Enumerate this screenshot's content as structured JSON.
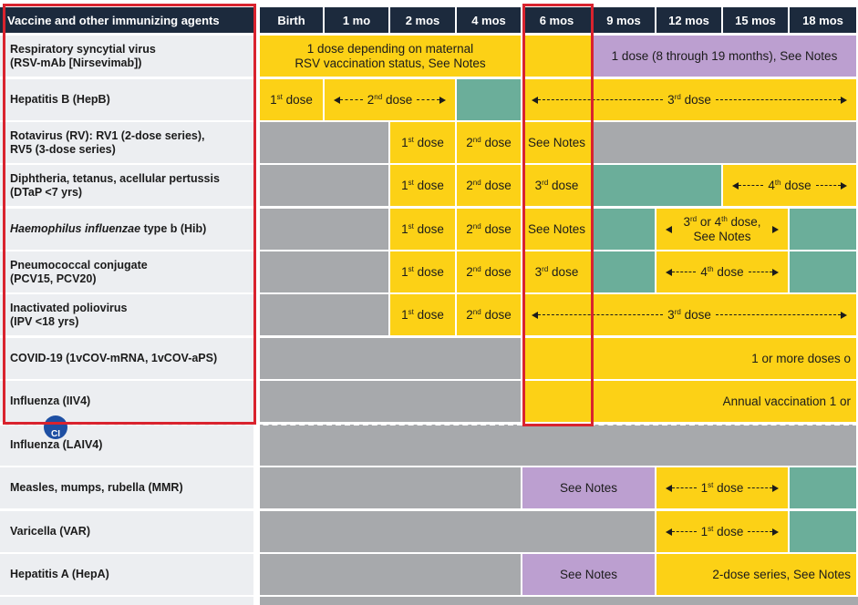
{
  "colors": {
    "header": "#1c2a3d",
    "label_bg": "#eceef1",
    "yellow": "#fcd116",
    "green": "#6bae9a",
    "purple": "#bc9fd0",
    "gray": "#a7a9ac",
    "annotation_red": "#d9232e"
  },
  "header": {
    "col0": "Vaccine and other immunizing agents",
    "cols": [
      "Birth",
      "1 mo",
      "2 mos",
      "4 mos",
      "6 mos",
      "9 mos",
      "12 mos",
      "15 mos",
      "18 mos"
    ]
  },
  "badge": {
    "text": "CI",
    "icon": "contraindication-badge-icon"
  },
  "rows": [
    {
      "label_lines": [
        "Respiratory syncytial virus",
        "(RSV-mAb [Nirsevimab])"
      ],
      "cells": [
        {
          "span": [
            0,
            4
          ],
          "color": "yellow",
          "lines": [
            "1 dose depending on maternal",
            "RSV vaccination status, See Notes"
          ]
        },
        {
          "span": [
            4,
            5
          ],
          "color": "yellow"
        },
        {
          "span": [
            5,
            9
          ],
          "color": "purple",
          "lines": [
            "1 dose (8 through 19 months), See Notes"
          ]
        }
      ]
    },
    {
      "label_lines": [
        "Hepatitis B (HepB)"
      ],
      "cells": [
        {
          "span": [
            0,
            1
          ],
          "color": "yellow",
          "num": "1",
          "sup": "st",
          "rest": " dose"
        },
        {
          "span": [
            1,
            3
          ],
          "color": "yellow",
          "arrow": true,
          "num": "2",
          "sup": "nd",
          "rest": " dose"
        },
        {
          "span": [
            3,
            4
          ],
          "color": "green"
        },
        {
          "span": [
            4,
            9
          ],
          "color": "yellow",
          "arrow": true,
          "num": "3",
          "sup": "rd",
          "rest": " dose"
        }
      ]
    },
    {
      "label_lines": [
        "Rotavirus (RV): RV1 (2-dose series),",
        "RV5 (3-dose series)"
      ],
      "cells": [
        {
          "span": [
            0,
            2
          ],
          "color": "gray"
        },
        {
          "span": [
            2,
            3
          ],
          "color": "yellow",
          "num": "1",
          "sup": "st",
          "rest": " dose"
        },
        {
          "span": [
            3,
            4
          ],
          "color": "yellow",
          "num": "2",
          "sup": "nd",
          "rest": " dose"
        },
        {
          "span": [
            4,
            5
          ],
          "color": "yellow",
          "lines": [
            "See Notes"
          ]
        },
        {
          "span": [
            5,
            9
          ],
          "color": "gray"
        }
      ]
    },
    {
      "label_lines": [
        "Diphtheria, tetanus, acellular pertussis",
        "(DTaP <7 yrs)"
      ],
      "cells": [
        {
          "span": [
            0,
            2
          ],
          "color": "gray"
        },
        {
          "span": [
            2,
            3
          ],
          "color": "yellow",
          "num": "1",
          "sup": "st",
          "rest": " dose"
        },
        {
          "span": [
            3,
            4
          ],
          "color": "yellow",
          "num": "2",
          "sup": "nd",
          "rest": " dose"
        },
        {
          "span": [
            4,
            5
          ],
          "color": "yellow",
          "num": "3",
          "sup": "rd",
          "rest": " dose"
        },
        {
          "span": [
            5,
            7
          ],
          "color": "green"
        },
        {
          "span": [
            7,
            9
          ],
          "color": "yellow",
          "arrow": true,
          "num": "4",
          "sup": "th",
          "rest": " dose"
        }
      ]
    },
    {
      "label_lines": [
        "Haemophilus influenzae type b (Hib)"
      ],
      "italic_prefix": "Haemophilus influenzae",
      "label_suffix": " type b (Hib)",
      "cells": [
        {
          "span": [
            0,
            2
          ],
          "color": "gray"
        },
        {
          "span": [
            2,
            3
          ],
          "color": "yellow",
          "num": "1",
          "sup": "st",
          "rest": " dose"
        },
        {
          "span": [
            3,
            4
          ],
          "color": "yellow",
          "num": "2",
          "sup": "nd",
          "rest": " dose"
        },
        {
          "span": [
            4,
            5
          ],
          "color": "yellow",
          "lines": [
            "See Notes"
          ]
        },
        {
          "span": [
            5,
            6
          ],
          "color": "green"
        },
        {
          "span": [
            6,
            8
          ],
          "color": "yellow",
          "hibnote": true
        },
        {
          "span": [
            8,
            9
          ],
          "color": "green"
        }
      ]
    },
    {
      "label_lines": [
        "Pneumococcal conjugate",
        "(PCV15, PCV20)"
      ],
      "cells": [
        {
          "span": [
            0,
            2
          ],
          "color": "gray"
        },
        {
          "span": [
            2,
            3
          ],
          "color": "yellow",
          "num": "1",
          "sup": "st",
          "rest": " dose"
        },
        {
          "span": [
            3,
            4
          ],
          "color": "yellow",
          "num": "2",
          "sup": "nd",
          "rest": " dose"
        },
        {
          "span": [
            4,
            5
          ],
          "color": "yellow",
          "num": "3",
          "sup": "rd",
          "rest": " dose"
        },
        {
          "span": [
            5,
            6
          ],
          "color": "green"
        },
        {
          "span": [
            6,
            8
          ],
          "color": "yellow",
          "arrow": true,
          "num": "4",
          "sup": "th",
          "rest": " dose"
        },
        {
          "span": [
            8,
            9
          ],
          "color": "green"
        }
      ]
    },
    {
      "label_lines": [
        "Inactivated poliovirus",
        "(IPV <18 yrs)"
      ],
      "cells": [
        {
          "span": [
            0,
            2
          ],
          "color": "gray"
        },
        {
          "span": [
            2,
            3
          ],
          "color": "yellow",
          "num": "1",
          "sup": "st",
          "rest": " dose"
        },
        {
          "span": [
            3,
            4
          ],
          "color": "yellow",
          "num": "2",
          "sup": "nd",
          "rest": " dose"
        },
        {
          "span": [
            4,
            9
          ],
          "color": "yellow",
          "arrow": true,
          "num": "3",
          "sup": "rd",
          "rest": " dose"
        }
      ]
    },
    {
      "label_lines": [
        "COVID-19 (1vCOV-mRNA, 1vCOV-aPS)"
      ],
      "cells": [
        {
          "span": [
            0,
            4
          ],
          "color": "gray"
        },
        {
          "span": [
            4,
            5
          ],
          "color": "yellow"
        },
        {
          "span": [
            5,
            9
          ],
          "color": "yellow",
          "lines": [
            "1 or more doses o"
          ],
          "align": "right"
        }
      ]
    },
    {
      "label_lines": [
        "Influenza (IIV4)"
      ],
      "cells": [
        {
          "span": [
            0,
            4
          ],
          "color": "gray"
        },
        {
          "span": [
            4,
            5
          ],
          "color": "yellow"
        },
        {
          "span": [
            5,
            9
          ],
          "color": "yellow",
          "lines": [
            "Annual vaccination 1 or"
          ],
          "align": "right"
        }
      ]
    },
    {
      "label_lines": [
        "Influenza (LAIV4)"
      ],
      "cells": [
        {
          "span": [
            0,
            9
          ],
          "color": "gray"
        }
      ]
    },
    {
      "label_lines": [
        "Measles, mumps, rubella (MMR)"
      ],
      "cells": [
        {
          "span": [
            0,
            4
          ],
          "color": "gray"
        },
        {
          "span": [
            4,
            6
          ],
          "color": "purple",
          "lines": [
            "See Notes"
          ]
        },
        {
          "span": [
            6,
            8
          ],
          "color": "yellow",
          "arrow": true,
          "num": "1",
          "sup": "st",
          "rest": " dose"
        },
        {
          "span": [
            8,
            9
          ],
          "color": "green"
        }
      ]
    },
    {
      "label_lines": [
        "Varicella (VAR)"
      ],
      "cells": [
        {
          "span": [
            0,
            6
          ],
          "color": "gray"
        },
        {
          "span": [
            6,
            8
          ],
          "color": "yellow",
          "arrow": true,
          "num": "1",
          "sup": "st",
          "rest": " dose"
        },
        {
          "span": [
            8,
            9
          ],
          "color": "green"
        }
      ]
    },
    {
      "label_lines": [
        "Hepatitis A (HepA)"
      ],
      "cells": [
        {
          "span": [
            0,
            4
          ],
          "color": "gray"
        },
        {
          "span": [
            4,
            6
          ],
          "color": "purple",
          "lines": [
            "See Notes"
          ]
        },
        {
          "span": [
            6,
            9
          ],
          "color": "yellow",
          "lines": [
            "2-dose series, See Notes"
          ],
          "align": "right"
        }
      ]
    }
  ],
  "hib_note": {
    "l1_num": "3",
    "l1_sup1": "rd",
    "l1_mid": " or 4",
    "l1_sup2": "th",
    "l1_end": " dose,",
    "l2": "See Notes"
  }
}
